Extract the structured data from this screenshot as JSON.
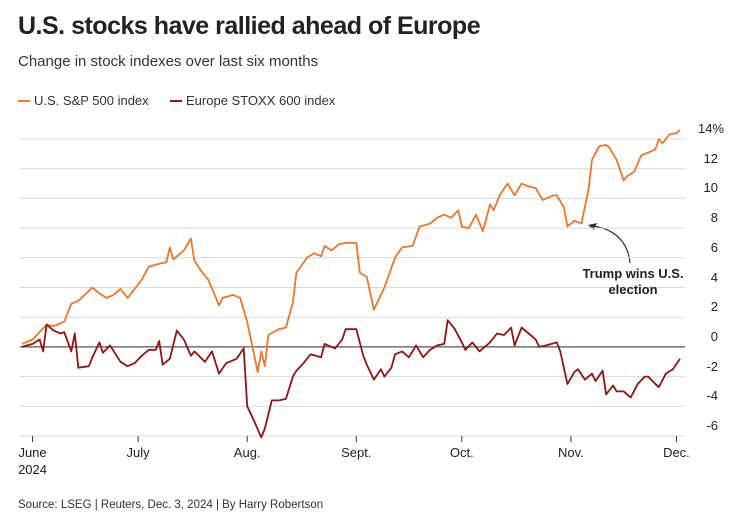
{
  "chart_data": {
    "type": "line",
    "title": "U.S. stocks have rallied ahead of Europe",
    "subtitle": "Change in stock indexes over last six months",
    "source": "Source: LSEG | Reuters, Dec. 3, 2024 | By Harry Robertson",
    "annotation": "Trump wins\nU.S. election",
    "xlim": [
      -3,
      186
    ],
    "ylim": [
      -6,
      14
    ],
    "xticks": [
      {
        "value": 0,
        "label": "June\n2024"
      },
      {
        "value": 30,
        "label": "July"
      },
      {
        "value": 61,
        "label": "Aug."
      },
      {
        "value": 92,
        "label": "Sept."
      },
      {
        "value": 122,
        "label": "Oct."
      },
      {
        "value": 153,
        "label": "Nov."
      },
      {
        "value": 183,
        "label": "Dec."
      }
    ],
    "yticks": [
      -6,
      -4,
      -2,
      0,
      2,
      4,
      6,
      8,
      10,
      12,
      {
        "value": 14,
        "label": "14%"
      }
    ],
    "grid": true,
    "series": [
      {
        "name": "U.S. S&P 500 index",
        "color": "#e8782f",
        "x": [
          -3,
          0,
          4,
          6,
          9,
          11,
          13,
          17,
          19,
          21,
          23,
          25,
          27,
          29,
          31,
          33,
          36,
          38,
          39,
          40,
          43,
          45,
          46,
          48,
          50,
          53,
          54,
          57,
          59,
          61,
          64,
          65,
          66,
          67,
          70,
          72,
          74,
          75,
          78,
          80,
          82,
          83,
          85,
          87,
          89,
          92,
          93,
          95,
          97,
          100,
          103,
          105,
          108,
          110,
          113,
          115,
          117,
          119,
          121,
          122,
          124,
          126,
          128,
          130,
          131,
          133,
          135,
          137,
          139,
          141,
          143,
          145,
          148,
          149,
          151,
          152,
          154,
          156,
          158,
          159,
          161,
          163,
          164,
          166,
          168,
          169,
          171,
          173,
          175,
          177,
          178,
          179,
          181,
          183,
          184
        ],
        "values": [
          0.2,
          0.5,
          1.5,
          1.4,
          1.7,
          2.9,
          3.1,
          4.0,
          3.6,
          3.3,
          3.5,
          3.9,
          3.3,
          3.9,
          4.5,
          5.4,
          5.6,
          5.7,
          6.7,
          5.9,
          6.5,
          7.3,
          5.8,
          5.1,
          4.5,
          2.8,
          3.3,
          3.5,
          3.3,
          1.7,
          -1.7,
          -0.3,
          -1.3,
          0.8,
          1.2,
          1.3,
          3.0,
          5.0,
          6.0,
          6.3,
          6.1,
          6.8,
          6.5,
          6.9,
          7.0,
          7.0,
          5.0,
          4.7,
          2.5,
          4.0,
          6.0,
          6.7,
          6.8,
          8.1,
          8.3,
          8.7,
          8.9,
          8.7,
          9.2,
          8.1,
          8.0,
          8.9,
          7.8,
          9.6,
          9.2,
          10.3,
          11.0,
          10.2,
          11.0,
          10.8,
          10.7,
          9.9,
          10.2,
          10.2,
          9.4,
          8.1,
          8.5,
          8.3,
          10.6,
          12.6,
          13.5,
          13.6,
          13.4,
          12.6,
          11.2,
          11.5,
          11.8,
          12.9,
          13.1,
          13.3,
          14.0,
          13.7,
          14.3,
          14.4,
          14.6
        ]
      },
      {
        "name": "Europe STOXX 600 index",
        "color": "#8c1515",
        "x": [
          -3,
          0,
          2,
          3,
          4,
          6,
          8,
          9,
          11,
          12,
          13,
          16,
          17,
          19,
          20,
          22,
          25,
          27,
          29,
          31,
          33,
          35,
          36,
          37,
          39,
          41,
          43,
          45,
          46,
          49,
          51,
          53,
          55,
          58,
          60,
          61,
          63,
          65,
          66,
          68,
          70,
          72,
          74,
          75,
          77,
          79,
          82,
          83,
          86,
          88,
          89,
          91,
          92,
          94,
          95,
          97,
          99,
          100,
          102,
          103,
          105,
          107,
          109,
          111,
          113,
          115,
          117,
          118,
          120,
          122,
          123,
          125,
          127,
          130,
          132,
          134,
          136,
          137,
          139,
          141,
          143,
          144,
          146,
          149,
          150,
          152,
          154,
          155,
          157,
          159,
          160,
          162,
          163,
          165,
          166,
          168,
          170,
          172,
          174,
          175,
          177,
          178,
          180,
          182,
          184
        ],
        "values": [
          0,
          0.2,
          0.5,
          -0.3,
          1.5,
          1.1,
          0.9,
          1.0,
          -0.3,
          0.9,
          -1.4,
          -1.3,
          -0.7,
          0.3,
          -0.4,
          0.1,
          -1.0,
          -1.3,
          -1.1,
          -0.6,
          -0.2,
          -0.2,
          0.4,
          -1.2,
          -0.8,
          1.1,
          0.5,
          -0.6,
          -0.3,
          -1.0,
          -0.3,
          -1.8,
          -1.1,
          -0.8,
          -0.1,
          -4.0,
          -5.0,
          -6.1,
          -5.5,
          -3.6,
          -3.6,
          -3.5,
          -2.0,
          -1.6,
          -1.1,
          -0.5,
          -0.7,
          0.2,
          -0.1,
          0.5,
          1.2,
          1.2,
          1.2,
          -0.6,
          -1.2,
          -2.2,
          -1.5,
          -2.0,
          -1.4,
          -0.5,
          -0.3,
          -0.7,
          0.1,
          -0.7,
          -0.2,
          0.1,
          0.2,
          1.8,
          1.2,
          0.3,
          -0.2,
          0.3,
          -0.3,
          0.3,
          0.9,
          0.8,
          1.3,
          0.1,
          1.3,
          0.9,
          0.5,
          0.0,
          0.1,
          0.3,
          -0.3,
          -2.5,
          -1.7,
          -1.5,
          -2.2,
          -1.8,
          -2.3,
          -1.6,
          -3.2,
          -2.6,
          -3.0,
          -3.0,
          -3.4,
          -2.5,
          -2.0,
          -2.0,
          -2.5,
          -2.7,
          -1.8,
          -1.5,
          -0.8
        ]
      }
    ]
  }
}
